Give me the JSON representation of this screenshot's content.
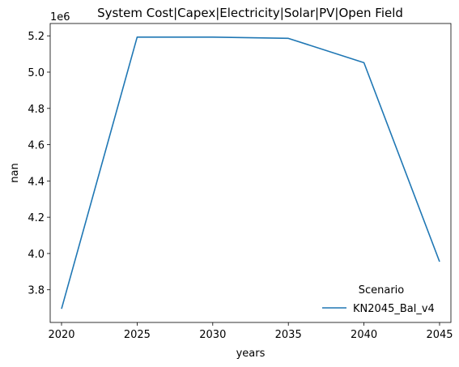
{
  "chart_data": {
    "type": "line",
    "title": "System Cost|Capex|Electricity|Solar|PV|Open Field",
    "xlabel": "years",
    "ylabel": "nan",
    "y_offset_label": "1e6",
    "x": [
      2020,
      2025,
      2030,
      2035,
      2040,
      2045
    ],
    "x_ticks": [
      "2020",
      "2025",
      "2030",
      "2035",
      "2040",
      "2045"
    ],
    "y_ticks": [
      "3.8",
      "4.0",
      "4.2",
      "4.4",
      "4.6",
      "4.8",
      "5.0",
      "5.2"
    ],
    "y_tick_values": [
      3.8,
      4.0,
      4.2,
      4.4,
      4.6,
      4.8,
      5.0,
      5.2
    ],
    "xlim": [
      2019.25,
      2045.75
    ],
    "ylim": [
      3.62,
      5.268
    ],
    "grid": false,
    "legend": {
      "title": "Scenario",
      "placement": "lower-right"
    },
    "series": [
      {
        "name": "KN2045_Bal_v4",
        "color": "#1f77b4",
        "values": [
          3.695,
          5.193,
          5.193,
          5.186,
          5.052,
          3.955
        ]
      }
    ]
  }
}
